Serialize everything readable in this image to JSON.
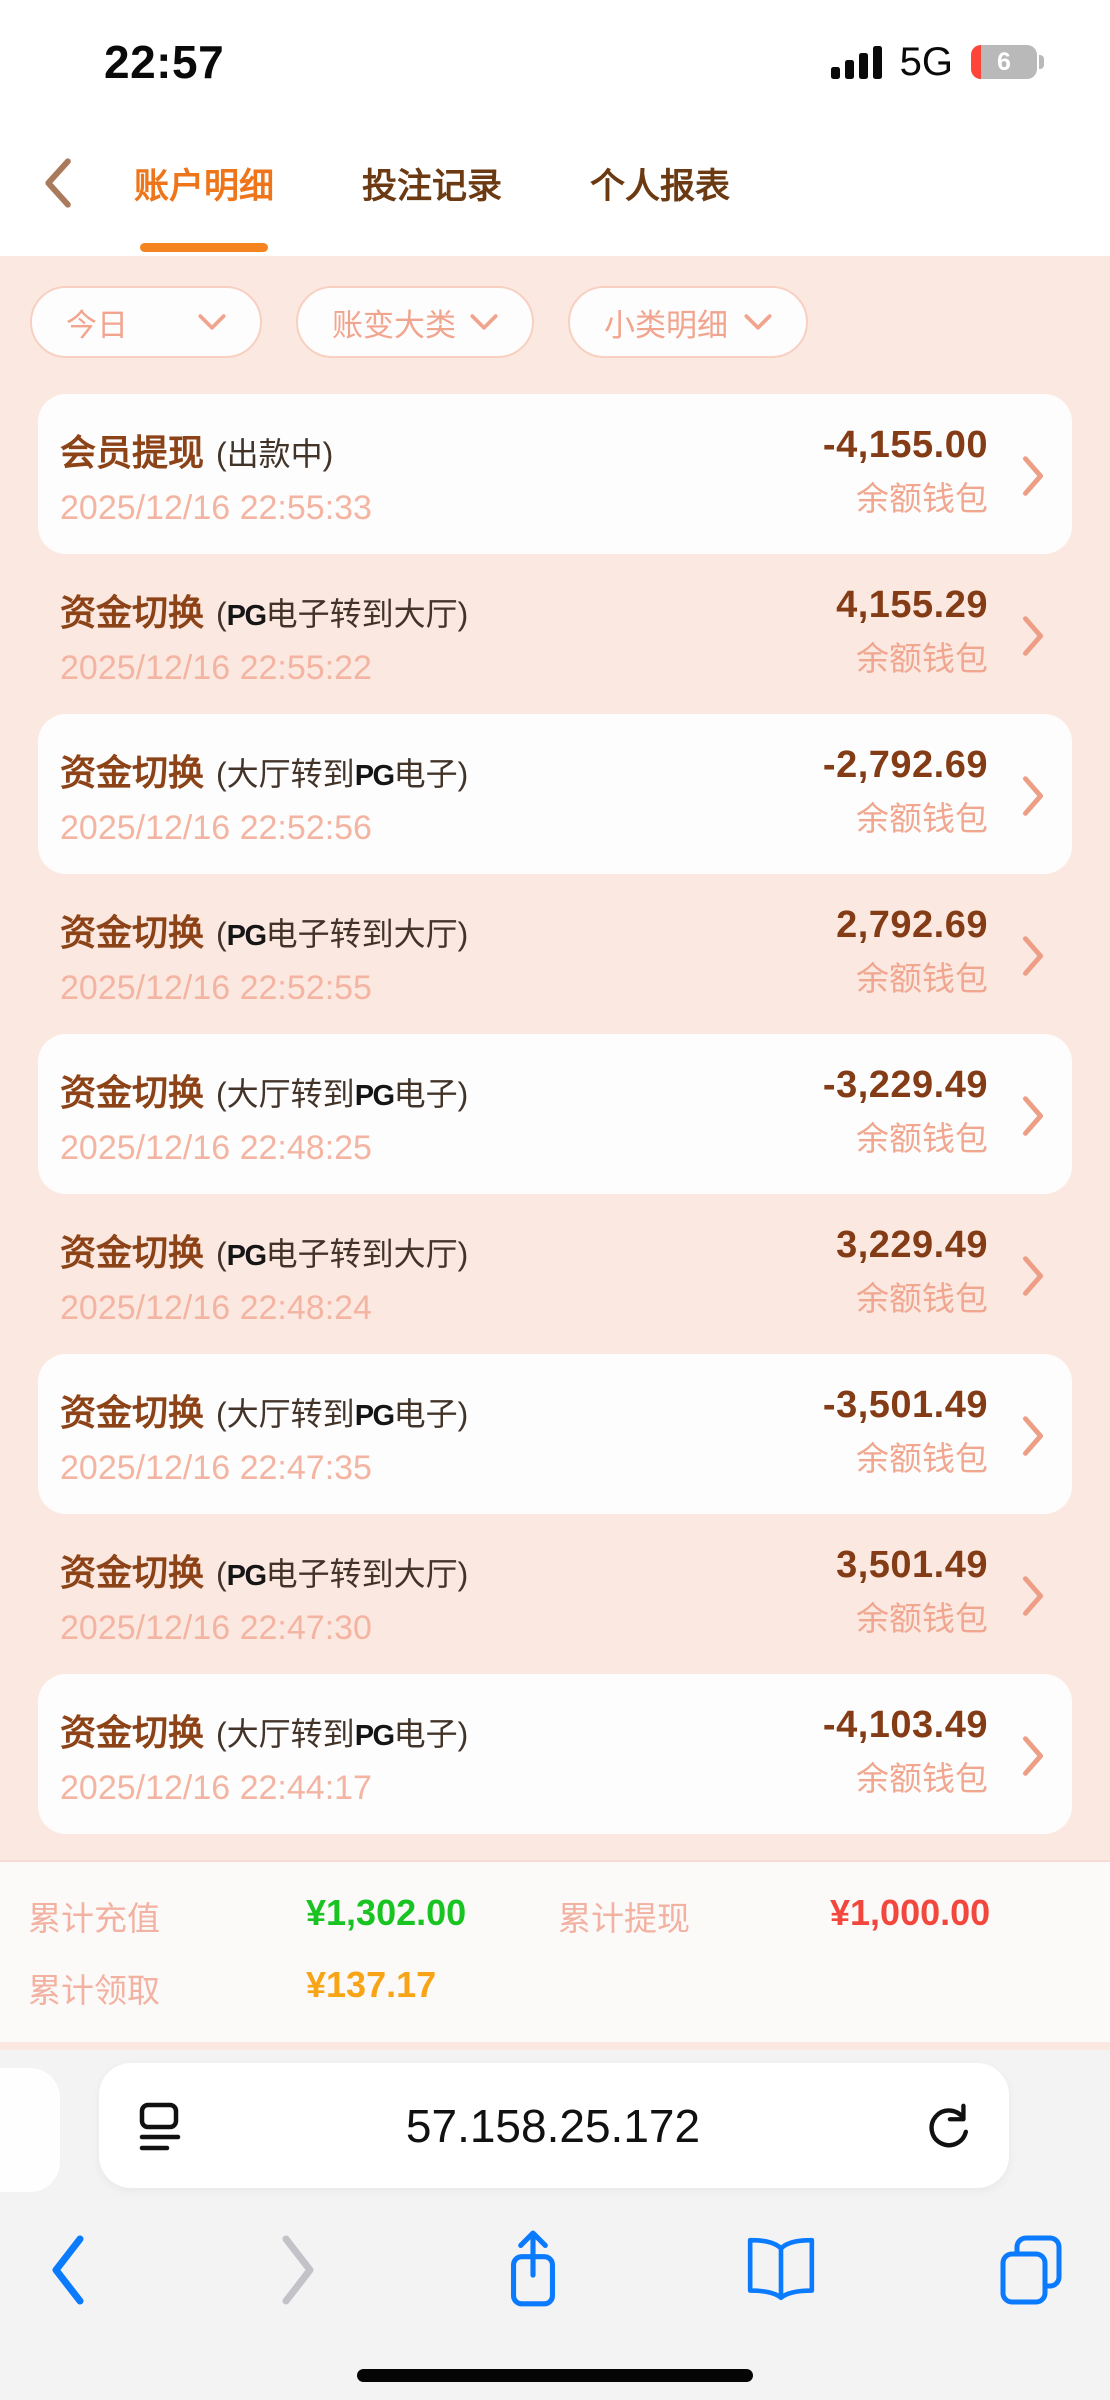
{
  "status_bar": {
    "time": "22:57",
    "network": "5G",
    "battery_percent": "6"
  },
  "header": {
    "tabs": [
      {
        "label": "账户明细",
        "active": true
      },
      {
        "label": "投注记录",
        "active": false
      },
      {
        "label": "个人报表",
        "active": false
      }
    ],
    "active_color": "#ee7519"
  },
  "filters": [
    {
      "label": "今日"
    },
    {
      "label": "账变大类"
    },
    {
      "label": "小类明细"
    }
  ],
  "transactions": [
    {
      "title": "会员提现",
      "subtitle": "(出款中)",
      "amount": "-4,155.00",
      "time": "2025/12/16 22:55:33",
      "wallet": "余额钱包"
    },
    {
      "title": "资金切换",
      "subtitle": "(PG电子转到大厅)",
      "amount": "4,155.29",
      "time": "2025/12/16 22:55:22",
      "wallet": "余额钱包"
    },
    {
      "title": "资金切换",
      "subtitle": "(大厅转到PG电子)",
      "amount": "-2,792.69",
      "time": "2025/12/16 22:52:56",
      "wallet": "余额钱包"
    },
    {
      "title": "资金切换",
      "subtitle": "(PG电子转到大厅)",
      "amount": "2,792.69",
      "time": "2025/12/16 22:52:55",
      "wallet": "余额钱包"
    },
    {
      "title": "资金切换",
      "subtitle": "(大厅转到PG电子)",
      "amount": "-3,229.49",
      "time": "2025/12/16 22:48:25",
      "wallet": "余额钱包"
    },
    {
      "title": "资金切换",
      "subtitle": "(PG电子转到大厅)",
      "amount": "3,229.49",
      "time": "2025/12/16 22:48:24",
      "wallet": "余额钱包"
    },
    {
      "title": "资金切换",
      "subtitle": "(大厅转到PG电子)",
      "amount": "-3,501.49",
      "time": "2025/12/16 22:47:35",
      "wallet": "余额钱包"
    },
    {
      "title": "资金切换",
      "subtitle": "(PG电子转到大厅)",
      "amount": "3,501.49",
      "time": "2025/12/16 22:47:30",
      "wallet": "余额钱包"
    },
    {
      "title": "资金切换",
      "subtitle": "(大厅转到PG电子)",
      "amount": "-4,103.49",
      "time": "2025/12/16 22:44:17",
      "wallet": "余额钱包"
    }
  ],
  "summary": {
    "recharge_label": "累计充值",
    "recharge_value": "¥1,302.00",
    "recharge_color": "#19c422",
    "withdraw_label": "累计提现",
    "withdraw_value": "¥1,000.00",
    "withdraw_color": "#f2473d",
    "claim_label": "累计领取",
    "claim_value": "¥137.17",
    "claim_color": "#f7a416"
  },
  "browser": {
    "url": "57.158.25.172"
  }
}
